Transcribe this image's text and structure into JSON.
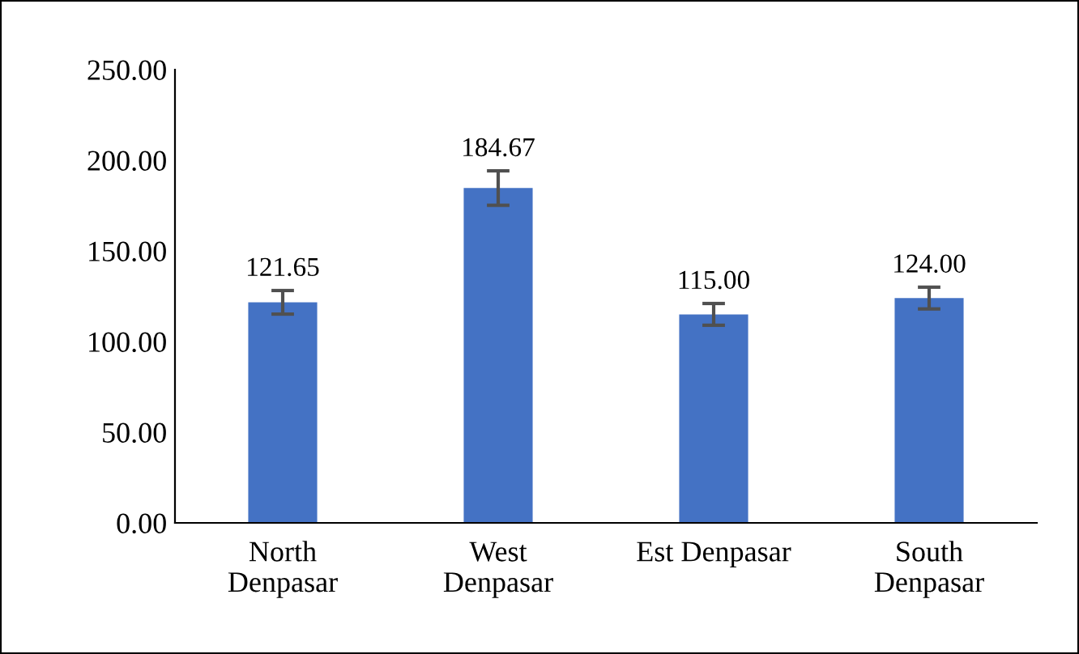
{
  "chart_data": {
    "type": "bar",
    "categories": [
      "North\nDenpasar",
      "West\nDenpasar",
      "Est Denpasar",
      "South\nDenpasar"
    ],
    "values": [
      121.65,
      184.67,
      115.0,
      124.0
    ],
    "errors": [
      6.5,
      9.5,
      6,
      6
    ],
    "value_labels": [
      "121.65",
      "184.67",
      "115.00",
      "124.00"
    ],
    "color": "#4472c4",
    "ylim": [
      0,
      250
    ],
    "yticks": [
      {
        "value": 0,
        "label": "0.00"
      },
      {
        "value": 50,
        "label": "50.00"
      },
      {
        "value": 100,
        "label": "100.00"
      },
      {
        "value": 150,
        "label": "150.00"
      },
      {
        "value": 200,
        "label": "200.00"
      },
      {
        "value": 250,
        "label": "250.00"
      }
    ],
    "grid": false
  }
}
